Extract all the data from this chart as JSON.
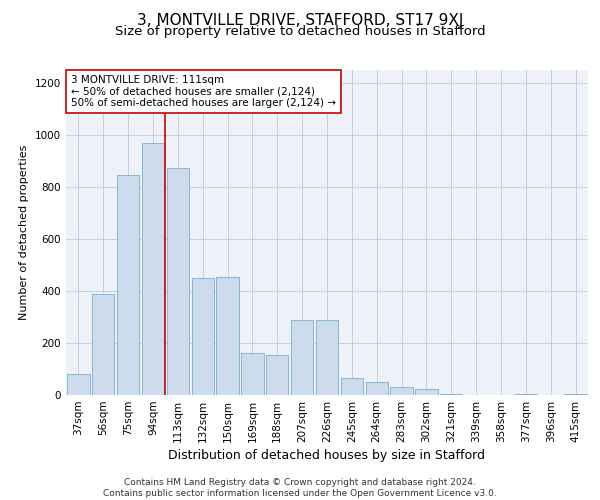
{
  "title1": "3, MONTVILLE DRIVE, STAFFORD, ST17 9XJ",
  "title2": "Size of property relative to detached houses in Stafford",
  "xlabel": "Distribution of detached houses by size in Stafford",
  "ylabel": "Number of detached properties",
  "categories": [
    "37sqm",
    "56sqm",
    "75sqm",
    "94sqm",
    "113sqm",
    "132sqm",
    "150sqm",
    "169sqm",
    "188sqm",
    "207sqm",
    "226sqm",
    "245sqm",
    "264sqm",
    "283sqm",
    "302sqm",
    "321sqm",
    "339sqm",
    "358sqm",
    "377sqm",
    "396sqm",
    "415sqm"
  ],
  "values": [
    80,
    390,
    845,
    970,
    875,
    450,
    455,
    160,
    155,
    290,
    290,
    65,
    50,
    30,
    25,
    5,
    0,
    0,
    5,
    0,
    5
  ],
  "bar_color": "#ccdcec",
  "bar_edge_color": "#7aafd0",
  "highlight_index": 4,
  "highlight_color": "#cc0000",
  "annotation_text": "3 MONTVILLE DRIVE: 111sqm\n← 50% of detached houses are smaller (2,124)\n50% of semi-detached houses are larger (2,124) →",
  "annotation_box_color": "#ffffff",
  "annotation_box_edge_color": "#cc0000",
  "ylim": [
    0,
    1250
  ],
  "yticks": [
    0,
    200,
    400,
    600,
    800,
    1000,
    1200
  ],
  "background_color": "#eef2f8",
  "footer_text": "Contains HM Land Registry data © Crown copyright and database right 2024.\nContains public sector information licensed under the Open Government Licence v3.0.",
  "title1_fontsize": 11,
  "title2_fontsize": 9.5,
  "xlabel_fontsize": 9,
  "ylabel_fontsize": 8,
  "tick_fontsize": 7.5,
  "annotation_fontsize": 7.5,
  "footer_fontsize": 6.5
}
